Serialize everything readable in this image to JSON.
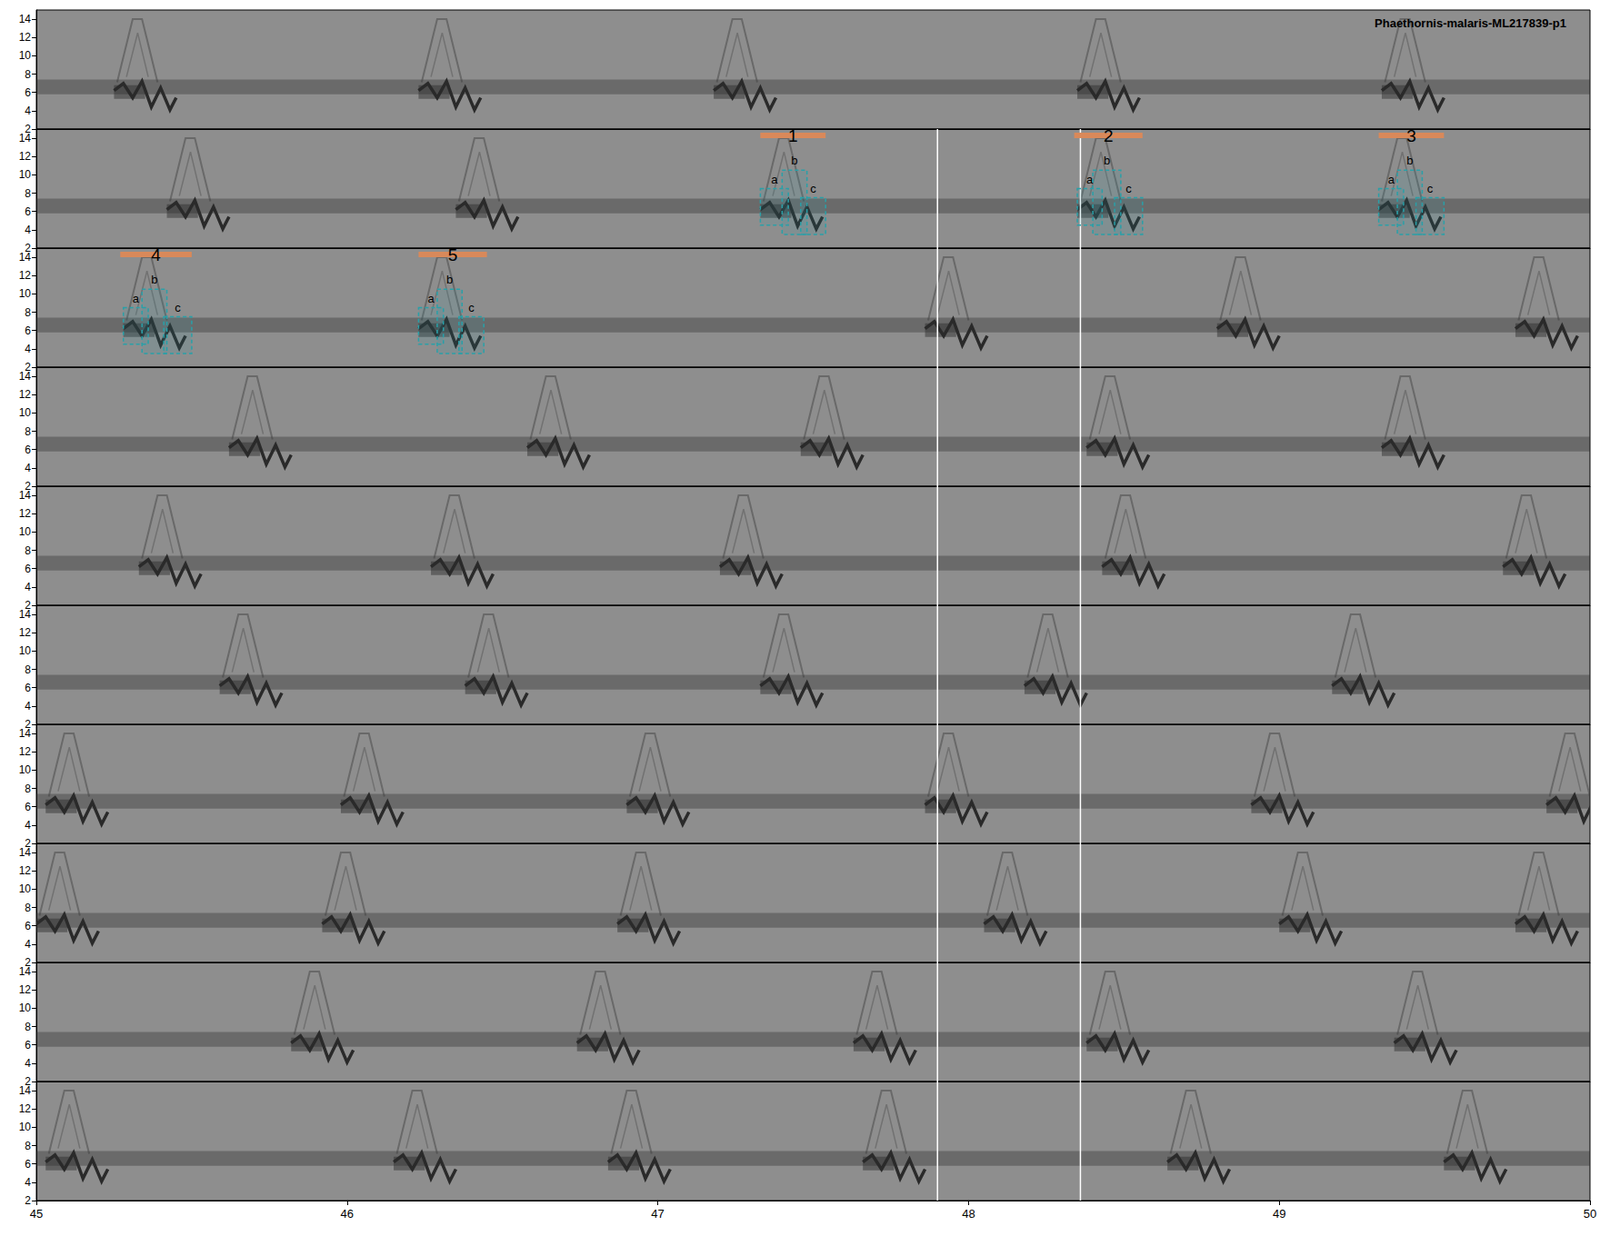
{
  "chart_data": {
    "type": "spectrogram",
    "title": "Phaethornis-malaris-ML217839-p1",
    "xlim": [
      45,
      50
    ],
    "xticks": [
      45,
      46,
      47,
      48,
      49,
      50
    ],
    "ylim": [
      2,
      15
    ],
    "yticks": [
      2,
      4,
      6,
      8,
      10,
      12,
      14
    ],
    "tick_labels": true,
    "color": "#2a2a2a",
    "noise_band": [
      5.8,
      7.4
    ],
    "call_band": [
      3.5,
      9.5
    ],
    "harmonic_top": 14,
    "call_duration": 0.2,
    "rows": [
      {
        "calls": [
          45.25,
          46.23,
          47.18,
          48.35,
          49.33
        ]
      },
      {
        "calls": [
          45.42,
          46.35,
          47.33,
          48.35,
          49.32
        ]
      },
      {
        "calls": [
          45.28,
          46.23,
          47.86,
          48.8,
          49.76
        ]
      },
      {
        "calls": [
          45.62,
          46.58,
          47.46,
          48.38,
          49.33
        ]
      },
      {
        "calls": [
          45.33,
          46.27,
          47.2,
          48.43,
          49.72
        ]
      },
      {
        "calls": [
          45.59,
          46.38,
          47.33,
          48.18,
          49.17
        ]
      },
      {
        "calls": [
          45.03,
          45.98,
          46.9,
          47.86,
          48.91,
          49.86
        ]
      },
      {
        "calls": [
          45.0,
          45.92,
          46.87,
          48.05,
          49.0,
          49.76
        ]
      },
      {
        "calls": [
          45.82,
          46.74,
          47.63,
          48.38,
          49.37
        ]
      },
      {
        "calls": [
          45.03,
          46.15,
          46.84,
          47.66,
          48.64,
          49.53
        ]
      }
    ],
    "selections": [
      {
        "label": "1",
        "row": 2,
        "start": 47.33,
        "end": 47.54,
        "units": [
          {
            "label": "a",
            "start": 47.33,
            "end": 47.42,
            "fmin": 4.5,
            "fmax": 8.5
          },
          {
            "label": "b",
            "start": 47.4,
            "end": 47.48,
            "fmin": 3.5,
            "fmax": 10.5
          },
          {
            "label": "c",
            "start": 47.46,
            "end": 47.54,
            "fmin": 3.5,
            "fmax": 7.5
          }
        ]
      },
      {
        "label": "2",
        "row": 2,
        "start": 48.34,
        "end": 48.56,
        "units": [
          {
            "label": "a",
            "start": 48.35,
            "end": 48.43,
            "fmin": 4.5,
            "fmax": 8.5
          },
          {
            "label": "b",
            "start": 48.4,
            "end": 48.49,
            "fmin": 3.5,
            "fmax": 10.5
          },
          {
            "label": "c",
            "start": 48.47,
            "end": 48.56,
            "fmin": 3.5,
            "fmax": 7.5
          }
        ]
      },
      {
        "label": "3",
        "row": 2,
        "start": 49.32,
        "end": 49.53,
        "units": [
          {
            "label": "a",
            "start": 49.32,
            "end": 49.4,
            "fmin": 4.5,
            "fmax": 8.5
          },
          {
            "label": "b",
            "start": 49.38,
            "end": 49.46,
            "fmin": 3.5,
            "fmax": 10.5
          },
          {
            "label": "c",
            "start": 49.44,
            "end": 49.53,
            "fmin": 3.5,
            "fmax": 7.5
          }
        ]
      },
      {
        "label": "4",
        "row": 3,
        "start": 45.27,
        "end": 45.5,
        "units": [
          {
            "label": "a",
            "start": 45.28,
            "end": 45.36,
            "fmin": 4.5,
            "fmax": 8.5
          },
          {
            "label": "b",
            "start": 45.34,
            "end": 45.42,
            "fmin": 3.5,
            "fmax": 10.5
          },
          {
            "label": "c",
            "start": 45.41,
            "end": 45.5,
            "fmin": 3.5,
            "fmax": 7.5
          }
        ]
      },
      {
        "label": "5",
        "row": 3,
        "start": 46.23,
        "end": 46.45,
        "units": [
          {
            "label": "a",
            "start": 46.23,
            "end": 46.31,
            "fmin": 4.5,
            "fmax": 8.5
          },
          {
            "label": "b",
            "start": 46.29,
            "end": 46.37,
            "fmin": 3.5,
            "fmax": 10.5
          },
          {
            "label": "c",
            "start": 46.36,
            "end": 46.44,
            "fmin": 3.5,
            "fmax": 7.5
          }
        ]
      }
    ],
    "vertical_lines": [
      {
        "x": 47.9,
        "rows": [
          2,
          3,
          4,
          5,
          6,
          7,
          8,
          9,
          10
        ]
      },
      {
        "x": 48.36,
        "rows": [
          2,
          3,
          4,
          5,
          6,
          7,
          8,
          9,
          10
        ]
      }
    ]
  }
}
